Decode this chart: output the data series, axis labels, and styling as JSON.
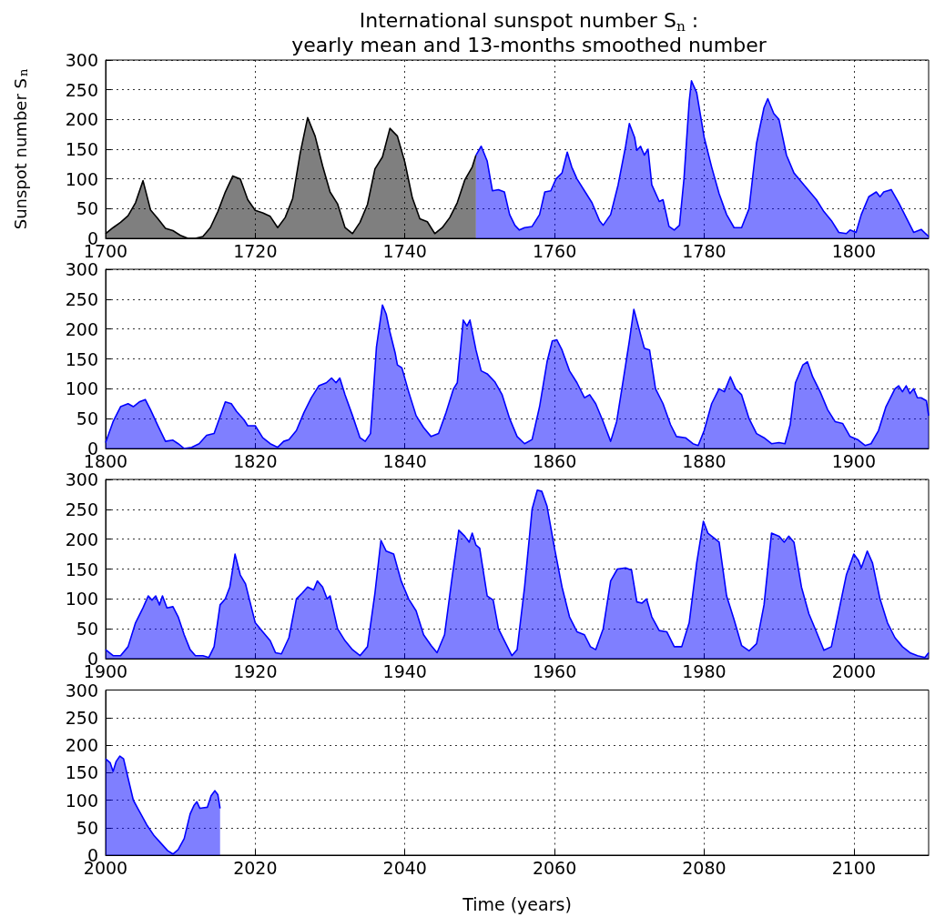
{
  "chart_data": [
    {
      "type": "area",
      "title": "International sunspot number S$_{n}$ :\nyearly mean and 13-months smoothed number",
      "ylabel": "Sunspot number S$_{n}$",
      "xlim": [
        1700,
        1810
      ],
      "xticks": [
        1700,
        1720,
        1740,
        1760,
        1780,
        1800
      ],
      "ylim": [
        0,
        300
      ],
      "yticks": [
        0,
        50,
        100,
        150,
        200,
        250,
        300
      ],
      "grid": true,
      "series": [
        {
          "color": "#000000",
          "x": [
            1700,
            1701,
            1702,
            1703,
            1704,
            1705,
            1706,
            1707,
            1708,
            1709,
            1710,
            1711,
            1712,
            1713,
            1714,
            1715,
            1716,
            1717,
            1718,
            1719,
            1720,
            1721,
            1722,
            1723,
            1724,
            1725,
            1726,
            1727,
            1728,
            1729,
            1730,
            1731,
            1732,
            1733,
            1734,
            1735,
            1736,
            1737,
            1738,
            1739,
            1740,
            1741,
            1742,
            1743,
            1744,
            1745,
            1746,
            1747,
            1748,
            1749,
            1749.5
          ],
          "values": [
            8,
            18,
            27,
            38,
            60,
            97,
            48,
            33,
            17,
            13,
            5,
            0,
            0,
            3,
            18,
            45,
            78,
            105,
            100,
            65,
            47,
            43,
            37,
            18,
            35,
            67,
            143,
            203,
            172,
            122,
            78,
            58,
            18,
            8,
            27,
            57,
            117,
            137,
            185,
            172,
            128,
            68,
            33,
            28,
            8,
            18,
            35,
            60,
            98,
            120,
            140
          ]
        },
        {
          "color": "#0000ff",
          "x": [
            1749.5,
            1750.2,
            1751,
            1751.7,
            1752.5,
            1753.3,
            1754,
            1754.7,
            1755.3,
            1756,
            1757,
            1758,
            1758.7,
            1759.5,
            1760.2,
            1761,
            1761.7,
            1762.3,
            1763,
            1764,
            1765,
            1766,
            1766.5,
            1767.5,
            1768.5,
            1769.5,
            1770,
            1770.7,
            1771,
            1771.5,
            1772,
            1772.5,
            1773,
            1774,
            1774.5,
            1775.3,
            1776,
            1776.7,
            1777.3,
            1778,
            1778.3,
            1779,
            1780,
            1781,
            1782,
            1783,
            1784,
            1785,
            1786,
            1787,
            1788,
            1788.5,
            1789.3,
            1790,
            1791,
            1792,
            1793,
            1794,
            1795,
            1796,
            1797,
            1798,
            1799,
            1799.5,
            1800.3,
            1801,
            1802,
            1803,
            1803.5,
            1804,
            1805,
            1806,
            1807,
            1808,
            1809,
            1810
          ],
          "values": [
            140,
            155,
            130,
            80,
            82,
            78,
            40,
            22,
            14,
            18,
            20,
            40,
            78,
            80,
            100,
            110,
            145,
            120,
            100,
            80,
            60,
            30,
            22,
            40,
            90,
            155,
            193,
            170,
            148,
            155,
            140,
            150,
            90,
            62,
            65,
            20,
            14,
            22,
            100,
            230,
            265,
            245,
            170,
            120,
            75,
            40,
            18,
            18,
            50,
            160,
            220,
            235,
            210,
            200,
            140,
            110,
            95,
            80,
            65,
            45,
            30,
            10,
            8,
            14,
            10,
            40,
            70,
            78,
            70,
            78,
            82,
            60,
            35,
            10,
            15,
            3
          ]
        }
      ]
    },
    {
      "type": "area",
      "xlim": [
        1800,
        1910
      ],
      "xticks": [
        1800,
        1820,
        1840,
        1860,
        1880,
        1900
      ],
      "ylim": [
        0,
        300
      ],
      "yticks": [
        0,
        50,
        100,
        150,
        200,
        250,
        300
      ],
      "grid": true,
      "series": [
        {
          "color": "#0000ff",
          "x": [
            1800,
            1801,
            1802,
            1803,
            1803.7,
            1804.5,
            1805.3,
            1806,
            1807,
            1808,
            1809,
            1809.7,
            1810.5,
            1811.5,
            1812.5,
            1813.5,
            1814.5,
            1815.2,
            1816,
            1816.8,
            1817.5,
            1818.5,
            1819,
            1820,
            1821,
            1822,
            1823,
            1823.8,
            1824.5,
            1825.5,
            1826.5,
            1827.5,
            1828.5,
            1829.5,
            1830.2,
            1830.8,
            1831.3,
            1832,
            1833,
            1834,
            1834.7,
            1835.4,
            1836.2,
            1837,
            1837.5,
            1838,
            1838.7,
            1839,
            1839.6,
            1840.5,
            1841.5,
            1842.5,
            1843.5,
            1844.5,
            1845.5,
            1846.5,
            1847,
            1847.8,
            1848.3,
            1848.7,
            1849.5,
            1850.2,
            1851,
            1852,
            1853,
            1854,
            1855,
            1856,
            1857,
            1858,
            1859,
            1859.7,
            1860.3,
            1861,
            1862,
            1863,
            1864,
            1864.7,
            1865.5,
            1866.5,
            1867.5,
            1868.3,
            1869,
            1870,
            1870.6,
            1871.3,
            1872,
            1872.7,
            1873.5,
            1874.5,
            1875.5,
            1876.3,
            1877.5,
            1878.5,
            1879.2,
            1880,
            1881,
            1882,
            1882.7,
            1883.5,
            1884.2,
            1885,
            1886,
            1887,
            1888,
            1889,
            1890,
            1890.8,
            1891.5,
            1892.2,
            1893.2,
            1893.8,
            1894.5,
            1895.5,
            1896.5,
            1897.5,
            1898.5,
            1899.5,
            1900.5,
            1901.5,
            1902.3,
            1903.3,
            1904.3,
            1905.5,
            1906,
            1906.5,
            1907,
            1907.5,
            1908,
            1908.5,
            1909,
            1909.7,
            1910
          ],
          "values": [
            10,
            45,
            70,
            75,
            70,
            78,
            82,
            65,
            38,
            12,
            14,
            8,
            0,
            2,
            8,
            22,
            25,
            50,
            78,
            75,
            62,
            48,
            38,
            38,
            18,
            8,
            2,
            12,
            15,
            30,
            60,
            85,
            105,
            110,
            118,
            110,
            118,
            90,
            55,
            18,
            12,
            25,
            170,
            240,
            225,
            195,
            160,
            140,
            135,
            95,
            55,
            35,
            20,
            25,
            60,
            100,
            110,
            215,
            205,
            215,
            165,
            130,
            125,
            112,
            90,
            50,
            20,
            8,
            15,
            70,
            145,
            180,
            182,
            165,
            130,
            110,
            85,
            90,
            75,
            45,
            12,
            45,
            100,
            180,
            233,
            200,
            168,
            165,
            100,
            75,
            40,
            20,
            18,
            8,
            5,
            30,
            75,
            100,
            95,
            120,
            100,
            90,
            50,
            25,
            18,
            8,
            10,
            8,
            40,
            110,
            140,
            145,
            120,
            95,
            65,
            45,
            42,
            20,
            15,
            5,
            8,
            30,
            70,
            100,
            105,
            95,
            105,
            92,
            100,
            85,
            85,
            80,
            55
          ]
        }
      ]
    },
    {
      "type": "area",
      "xlim": [
        1900,
        2010
      ],
      "xticks": [
        1900,
        1920,
        1940,
        1960,
        1980,
        2000
      ],
      "ylim": [
        0,
        300
      ],
      "yticks": [
        0,
        50,
        100,
        150,
        200,
        250,
        300
      ],
      "grid": true,
      "series": [
        {
          "color": "#0000ff",
          "x": [
            1900,
            1901,
            1902,
            1903,
            1904,
            1905,
            1905.7,
            1906.2,
            1906.7,
            1907.2,
            1907.6,
            1908.2,
            1909,
            1909.7,
            1910.5,
            1911.3,
            1912,
            1913,
            1913.8,
            1914.5,
            1915.3,
            1916,
            1916.6,
            1917.3,
            1918,
            1918.7,
            1919.3,
            1920,
            1921,
            1922,
            1922.7,
            1923.5,
            1924.5,
            1925.5,
            1926.3,
            1927,
            1927.8,
            1928.3,
            1929,
            1929.6,
            1930,
            1931,
            1932,
            1933,
            1934,
            1935,
            1936,
            1936.8,
            1937.5,
            1938.5,
            1939.5,
            1940.5,
            1941.5,
            1942.5,
            1943.5,
            1944.3,
            1945.3,
            1946.3,
            1947.2,
            1948,
            1948.6,
            1949,
            1949.5,
            1950,
            1951,
            1951.8,
            1952.5,
            1953.5,
            1954.3,
            1955,
            1956,
            1957,
            1957.7,
            1958.3,
            1959,
            1960,
            1961,
            1962,
            1963,
            1964,
            1964.8,
            1965.5,
            1966.5,
            1967.5,
            1968.4,
            1969.5,
            1970.3,
            1971,
            1971.7,
            1972.3,
            1973,
            1974,
            1975,
            1976,
            1977,
            1978,
            1979,
            1979.9,
            1980.5,
            1981,
            1982,
            1983,
            1984,
            1985,
            1986,
            1987,
            1988,
            1989,
            1990,
            1990.7,
            1991.3,
            1992,
            1993,
            1994,
            1995,
            1996,
            1997,
            1998,
            1999,
            2000,
            2000.6,
            2001,
            2001.8,
            2002.5,
            2003.5,
            2004.5,
            2005.5,
            2006.5,
            2007.5,
            2008.5,
            2009.5,
            2010
          ],
          "values": [
            15,
            5,
            5,
            20,
            60,
            85,
            105,
            98,
            105,
            90,
            105,
            85,
            87,
            70,
            40,
            15,
            5,
            5,
            2,
            20,
            90,
            100,
            120,
            175,
            140,
            125,
            95,
            60,
            45,
            30,
            10,
            8,
            35,
            100,
            110,
            120,
            115,
            130,
            120,
            100,
            105,
            50,
            30,
            15,
            5,
            20,
            110,
            198,
            180,
            175,
            130,
            100,
            80,
            40,
            22,
            10,
            40,
            135,
            215,
            205,
            195,
            210,
            190,
            185,
            105,
            98,
            50,
            25,
            5,
            15,
            120,
            250,
            282,
            280,
            255,
            185,
            120,
            70,
            45,
            40,
            20,
            15,
            50,
            130,
            150,
            152,
            148,
            95,
            93,
            100,
            70,
            47,
            45,
            20,
            20,
            60,
            160,
            230,
            210,
            205,
            195,
            105,
            65,
            22,
            13,
            25,
            90,
            210,
            205,
            195,
            205,
            195,
            120,
            75,
            45,
            14,
            20,
            80,
            140,
            175,
            165,
            152,
            180,
            160,
            100,
            60,
            35,
            20,
            10,
            5,
            2,
            10
          ]
        }
      ]
    },
    {
      "type": "area",
      "xlabel": "Time (years)",
      "xlim": [
        2000,
        2110
      ],
      "xticks": [
        2000,
        2020,
        2040,
        2060,
        2080,
        2100
      ],
      "ylim": [
        0,
        300
      ],
      "yticks": [
        0,
        50,
        100,
        150,
        200,
        250,
        300
      ],
      "grid": true,
      "series": [
        {
          "color": "#0000ff",
          "x": [
            2000,
            2000.6,
            2001,
            2001.4,
            2001.9,
            2002.4,
            2003,
            2003.7,
            2004.5,
            2005.5,
            2006.5,
            2007.5,
            2008.3,
            2009,
            2009.7,
            2010.5,
            2011.3,
            2011.8,
            2012.2,
            2012.6,
            2013,
            2013.6,
            2014.1,
            2014.6,
            2015,
            2015.3
          ],
          "values": [
            175,
            168,
            152,
            170,
            180,
            175,
            140,
            100,
            80,
            55,
            35,
            20,
            8,
            2,
            10,
            30,
            75,
            90,
            97,
            85,
            86,
            87,
            108,
            117,
            110,
            85
          ]
        }
      ]
    }
  ]
}
